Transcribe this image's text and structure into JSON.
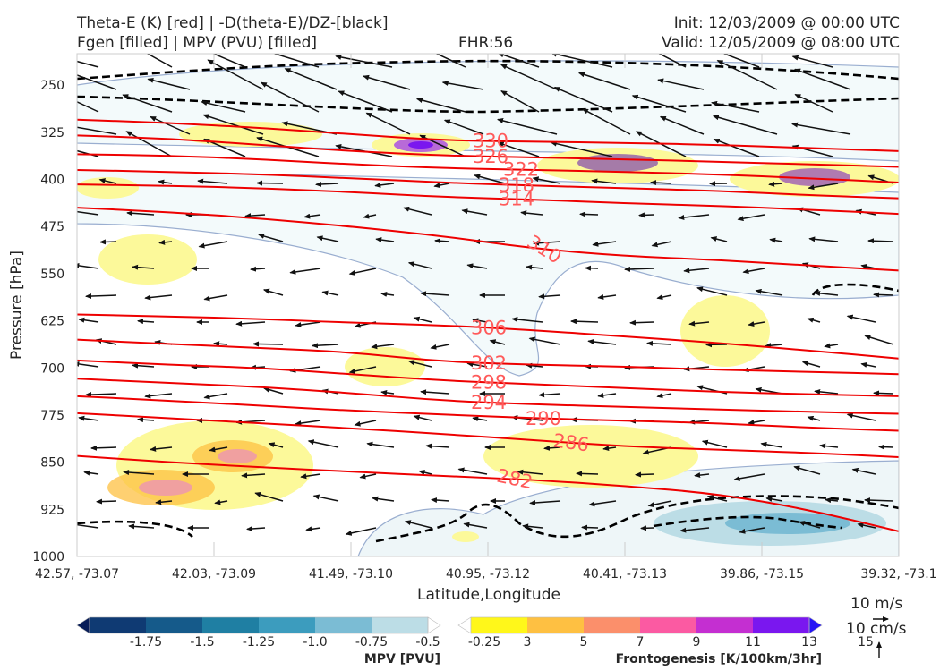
{
  "header": {
    "title_line1": "Theta-E (K) [red] | -D(theta-E)/DZ-[black]",
    "title_line2": "Fgen [filled] | MPV (PVU) [filled]",
    "fhr": "FHR:56",
    "init": "Init: 12/03/2009 @ 00:00 UTC",
    "valid": "Valid: 12/05/2009 @ 08:00 UTC"
  },
  "chart_data": {
    "type": "cross-section",
    "xlabel": "Latitude,Longitude",
    "ylabel": "Pressure [hPa]",
    "x_ticks": [
      "42.57, -73.07",
      "42.03, -73.09",
      "41.49, -73.10",
      "40.95, -73.12",
      "40.41, -73.13",
      "39.86, -73.15",
      "39.32, -73.1"
    ],
    "ylim": [
      1000,
      200
    ],
    "y_ticks": [
      250,
      325,
      400,
      475,
      550,
      625,
      700,
      775,
      850,
      925,
      1000
    ],
    "theta_e_contours": [
      {
        "label": "330",
        "pressures": [
          305,
          310,
          318,
          328,
          338,
          340,
          342,
          345,
          350,
          355
        ]
      },
      {
        "label": "326",
        "pressures": [
          330,
          335,
          345,
          355,
          362,
          365,
          368,
          372,
          376,
          380
        ]
      },
      {
        "label": "322",
        "pressures": [
          360,
          362,
          368,
          376,
          382,
          385,
          388,
          392,
          398,
          405
        ]
      },
      {
        "label": "318",
        "pressures": [
          385,
          388,
          392,
          398,
          405,
          410,
          414,
          418,
          425,
          430
        ]
      },
      {
        "label": "314",
        "pressures": [
          408,
          410,
          414,
          420,
          428,
          432,
          438,
          442,
          448,
          455
        ]
      },
      {
        "label": "310",
        "pressures": [
          445,
          452,
          462,
          475,
          490,
          510,
          522,
          528,
          537,
          545
        ]
      },
      {
        "label": "306",
        "pressures": [
          615,
          618,
          622,
          628,
          632,
          640,
          650,
          660,
          672,
          685
        ]
      },
      {
        "label": "302",
        "pressures": [
          655,
          662,
          668,
          675,
          690,
          695,
          698,
          703,
          706,
          710
        ]
      },
      {
        "label": "298",
        "pressures": [
          688,
          695,
          700,
          710,
          720,
          726,
          732,
          738,
          742,
          745
        ]
      },
      {
        "label": "294",
        "pressures": [
          717,
          724,
          730,
          740,
          752,
          758,
          762,
          766,
          770,
          773
        ]
      },
      {
        "label": "290",
        "pressures": [
          745,
          752,
          760,
          768,
          774,
          780,
          784,
          788,
          795,
          800
        ]
      },
      {
        "label": "286",
        "pressures": [
          772,
          780,
          788,
          796,
          805,
          815,
          825,
          830,
          835,
          842
        ]
      },
      {
        "label": "282",
        "pressures": [
          840,
          850,
          858,
          865,
          872,
          878,
          888,
          900,
          925,
          960
        ]
      }
    ],
    "wind_key": {
      "horizontal": "10 m/s",
      "vertical": "10 cm/s"
    },
    "colorbars": [
      {
        "title": "MPV [PVU]",
        "ticks": [
          "-1.75",
          "-1.5",
          "-1.25",
          "-1.0",
          "-0.75",
          "-0.5",
          "-0.25"
        ],
        "colors": [
          "#081d58",
          "#0f3a73",
          "#155a8a",
          "#1f7fa3",
          "#3c9cbe",
          "#7bbcd4",
          "#bcdde6",
          "#ffffff"
        ]
      },
      {
        "title": "Frontogenesis [K/100km/3hr]",
        "ticks": [
          "3",
          "5",
          "7",
          "9",
          "11",
          "13",
          "15"
        ],
        "colors": [
          "#ffffff",
          "#fff71a",
          "#fec042",
          "#fb8f6b",
          "#fb5aa2",
          "#c42fd1",
          "#7a17ef",
          "#2515f5"
        ]
      }
    ]
  }
}
